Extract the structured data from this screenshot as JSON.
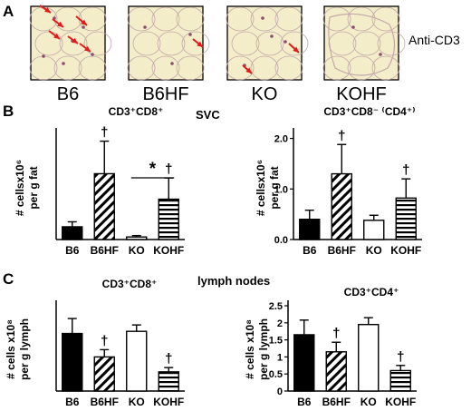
{
  "panels": {
    "A": {
      "letter": "A",
      "stain_label": "Anti-CD3",
      "images": [
        {
          "label": "B6",
          "arrow_count": 6
        },
        {
          "label": "B6HF",
          "arrow_count": 1
        },
        {
          "label": "KO",
          "arrow_count": 2
        },
        {
          "label": "KOHF",
          "arrow_count": 0
        }
      ]
    },
    "B": {
      "letter": "B",
      "center_label": "SVC"
    },
    "C": {
      "letter": "C",
      "center_label": "lymph nodes"
    }
  },
  "colors": {
    "photo_bg": "#f4edc9",
    "cell_wall": "#c2a8aa",
    "nucleus": "#8a4f6e",
    "arrow": "#e01b1b",
    "bar_edge": "#000000"
  },
  "chart_data": [
    {
      "type": "bar",
      "panel": "B",
      "title": "CD3⁺CD8⁺",
      "ylabel": [
        "# cellsx10⁶",
        "per g fat"
      ],
      "categories": [
        "B6",
        "B6HF",
        "KO",
        "KOHF"
      ],
      "fills": [
        "solid",
        "diagonal",
        "open",
        "horizontal"
      ],
      "values": [
        0.9,
        4.65,
        0.18,
        2.85
      ],
      "errors": [
        0.35,
        2.3,
        0.1,
        1.5
      ],
      "ylim": [
        0,
        7.5
      ],
      "yticks": [],
      "annotations": [
        "",
        "†",
        "",
        "†"
      ],
      "bracket": {
        "from": "KO",
        "to": "KOHF",
        "label": "*"
      }
    },
    {
      "type": "bar",
      "panel": "B",
      "title": "CD3⁺CD8⁻ ⁽CD4⁺⁾",
      "ylabel": [
        "# cellsx10⁶",
        "per g fat"
      ],
      "categories": [
        "B6",
        "B6HF",
        "KO",
        "KOHF"
      ],
      "fills": [
        "solid",
        "diagonal",
        "open",
        "horizontal"
      ],
      "values": [
        0.4,
        1.3,
        0.38,
        0.82
      ],
      "errors": [
        0.18,
        0.58,
        0.1,
        0.38
      ],
      "ylim": [
        0,
        2.1
      ],
      "yticks": [
        {
          "v": 0.0,
          "t": "0.0"
        },
        {
          "v": 1.0,
          "t": "1.0"
        },
        {
          "v": 2.0,
          "t": "2.0"
        }
      ],
      "annotations": [
        "",
        "†",
        "",
        "†"
      ]
    },
    {
      "type": "bar",
      "panel": "C",
      "title": "CD3⁺CD8⁺",
      "ylabel": [
        "# cells x10⁸",
        "per g lymph"
      ],
      "categories": [
        "B6",
        "B6HF",
        "KO",
        "KOHF"
      ],
      "fills": [
        "solid",
        "diagonal",
        "open",
        "horizontal"
      ],
      "values": [
        1.35,
        0.8,
        1.4,
        0.45
      ],
      "errors": [
        0.35,
        0.17,
        0.15,
        0.1
      ],
      "ylim": [
        0,
        2.0
      ],
      "yticks": [],
      "annotations": [
        "",
        "†",
        "",
        "†"
      ]
    },
    {
      "type": "bar",
      "panel": "C",
      "title": "CD3⁺CD4⁺",
      "ylabel": [
        "# cells x10⁸",
        "per g lymph"
      ],
      "categories": [
        "B6",
        "B6HF",
        "KO",
        "KOHF"
      ],
      "fills": [
        "solid",
        "diagonal",
        "open",
        "horizontal"
      ],
      "values": [
        1.65,
        1.15,
        1.95,
        0.6
      ],
      "errors": [
        0.43,
        0.28,
        0.2,
        0.15
      ],
      "ylim": [
        0,
        2.5
      ],
      "yticks": [
        {
          "v": 0,
          "t": "0"
        },
        {
          "v": 0.5,
          "t": "0.5"
        },
        {
          "v": 1,
          "t": "1"
        },
        {
          "v": 1.5,
          "t": "1.5"
        },
        {
          "v": 2,
          "t": "2"
        },
        {
          "v": 2.5,
          "t": "2.5"
        }
      ],
      "annotations": [
        "",
        "†",
        "",
        "†"
      ]
    }
  ]
}
